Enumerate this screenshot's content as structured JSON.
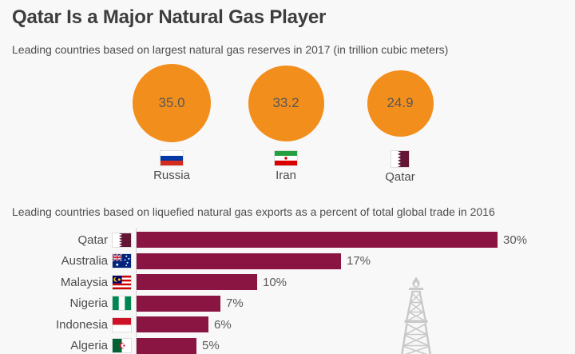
{
  "title": "Qatar Is a Major Natural Gas Player",
  "colors": {
    "bubble_orange": "#f28e1c",
    "bar_maroon": "#8a1543",
    "background": "#f8f8f8",
    "title_text": "#3d3d3d",
    "body_text": "#4d4d4d",
    "qatar_flag_maroon": "#641735",
    "derrick_gray": "#c9c9c9"
  },
  "icons": {
    "bubble_flags": [
      "russia-flag",
      "iran-flag",
      "qatar-flag"
    ],
    "bar_flags": [
      "qatar-flag",
      "australia-flag",
      "malaysia-flag",
      "nigeria-flag",
      "indonesia-flag",
      "algeria-flag"
    ],
    "decoration": "oil-derrick"
  },
  "chart_data": [
    {
      "type": "bubble",
      "title": "Leading countries based on largest natural gas reserves in 2017 (in trillion cubic meters)",
      "unit": "trillion cubic meters",
      "points": [
        {
          "country": "Russia",
          "value": 35.0,
          "label": "35.0"
        },
        {
          "country": "Iran",
          "value": 33.2,
          "label": "33.2"
        },
        {
          "country": "Qatar",
          "value": 24.9,
          "label": "24.9"
        }
      ],
      "color": "#f28e1c",
      "legend_position": "below-bubbles"
    },
    {
      "type": "bar",
      "title": "Leading countries based on liquefied natural gas exports as a percent of total global trade in 2016",
      "orientation": "horizontal",
      "categories": [
        "Qatar",
        "Australia",
        "Malaysia",
        "Nigeria",
        "Indonesia",
        "Algeria"
      ],
      "values": [
        30,
        17,
        10,
        7,
        6,
        5
      ],
      "value_labels": [
        "30%",
        "17%",
        "10%",
        "7%",
        "6%",
        "5%"
      ],
      "xlim": [
        0,
        30
      ],
      "grid": false,
      "bar_color": "#8a1543"
    }
  ]
}
